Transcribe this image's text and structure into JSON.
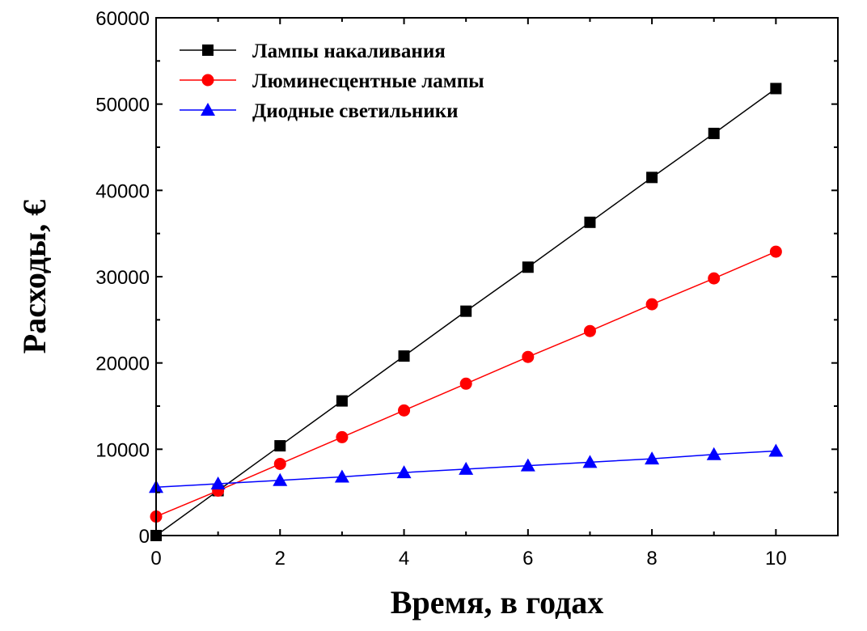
{
  "chart_data": {
    "type": "line",
    "title": "",
    "xlabel": "Время, в годах",
    "ylabel": "Расходы, €",
    "xlim": [
      0,
      11
    ],
    "ylim": [
      0,
      60000
    ],
    "xticks": [
      0,
      2,
      4,
      6,
      8,
      10
    ],
    "xtick_labels": [
      "0",
      "2",
      "4",
      "6",
      "8",
      "10"
    ],
    "yticks": [
      0,
      10000,
      20000,
      30000,
      40000,
      50000,
      60000
    ],
    "ytick_labels": [
      "0",
      "10000",
      "20000",
      "30000",
      "40000",
      "50000",
      "60000"
    ],
    "grid": false,
    "legend_position": "top-left",
    "x": [
      0,
      1,
      2,
      3,
      4,
      5,
      6,
      7,
      8,
      9,
      10
    ],
    "series": [
      {
        "name": "Лампы накаливания",
        "marker": "square",
        "color": "#000000",
        "values": [
          0,
          5200,
          10400,
          15600,
          20800,
          26000,
          31100,
          36300,
          41500,
          46600,
          51800
        ]
      },
      {
        "name": "Люминесцентные лампы",
        "marker": "circle",
        "color": "#ff0000",
        "values": [
          2200,
          5200,
          8300,
          11400,
          14500,
          17600,
          20700,
          23700,
          26800,
          29800,
          32900
        ]
      },
      {
        "name": "Диодные светильники",
        "marker": "triangle",
        "color": "#0000ff",
        "values": [
          5600,
          6000,
          6400,
          6800,
          7300,
          7700,
          8100,
          8500,
          8900,
          9400,
          9800
        ]
      }
    ]
  }
}
